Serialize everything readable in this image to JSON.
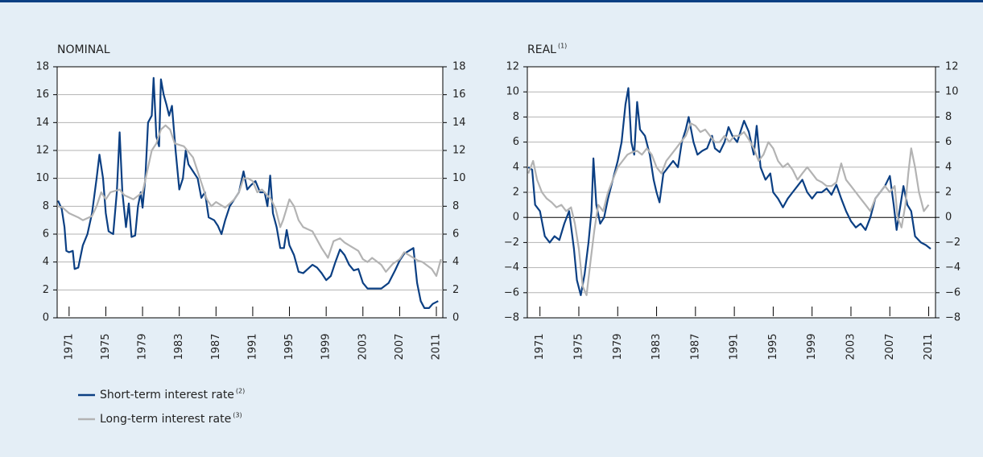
{
  "chart_data": [
    {
      "type": "line",
      "title": "NOMINAL",
      "xlim": [
        1969.7,
        2011.7
      ],
      "xticks": [
        1971,
        1975,
        1979,
        1983,
        1987,
        1991,
        1995,
        1999,
        2003,
        2007,
        2011
      ],
      "ylim": [
        0,
        18
      ],
      "yticks": [
        0,
        2,
        4,
        6,
        8,
        10,
        12,
        14,
        16,
        18
      ],
      "y2lim": [
        0,
        18
      ],
      "y2ticks": [
        0,
        2,
        4,
        6,
        8,
        10,
        12,
        14,
        16,
        18
      ],
      "grid": true,
      "series": [
        {
          "name": "Short-term interest rate",
          "note": "(2)",
          "color": "#0b3f83",
          "x": [
            1969.8,
            1970.2,
            1970.5,
            1970.7,
            1971.0,
            1971.4,
            1971.6,
            1972.0,
            1972.5,
            1973.0,
            1973.5,
            1974.0,
            1974.3,
            1974.7,
            1975.0,
            1975.3,
            1975.8,
            1976.2,
            1976.5,
            1976.8,
            1977.2,
            1977.5,
            1977.8,
            1978.2,
            1978.5,
            1978.8,
            1979.0,
            1979.3,
            1979.6,
            1980.0,
            1980.2,
            1980.5,
            1980.8,
            1981.0,
            1981.3,
            1981.6,
            1981.9,
            1982.2,
            1982.6,
            1983.0,
            1983.4,
            1983.7,
            1984.0,
            1984.5,
            1985.0,
            1985.4,
            1985.8,
            1986.2,
            1986.8,
            1987.2,
            1987.6,
            1988.0,
            1988.5,
            1989.0,
            1989.5,
            1990.0,
            1990.4,
            1990.8,
            1991.3,
            1991.8,
            1992.3,
            1992.6,
            1992.9,
            1993.2,
            1993.6,
            1994.0,
            1994.4,
            1994.7,
            1995.0,
            1995.5,
            1996.0,
            1996.5,
            1997.0,
            1997.5,
            1998.0,
            1998.5,
            1999.0,
            1999.5,
            2000.0,
            2000.5,
            2001.0,
            2001.5,
            2002.0,
            2002.5,
            2003.0,
            2003.5,
            2004.0,
            2005.0,
            2005.8,
            2006.5,
            2007.0,
            2007.5,
            2008.0,
            2008.5,
            2008.9,
            2009.3,
            2009.7,
            2010.2,
            2010.6,
            2011.2
          ],
          "values": [
            8.4,
            7.8,
            6.5,
            4.8,
            4.7,
            4.8,
            3.5,
            3.6,
            5.2,
            6.0,
            7.5,
            10.0,
            11.7,
            10.0,
            7.5,
            6.2,
            6.0,
            9.0,
            13.3,
            9.0,
            6.5,
            8.2,
            5.8,
            5.9,
            8.0,
            9.0,
            7.9,
            10.0,
            14.0,
            14.5,
            17.2,
            13.0,
            12.3,
            17.1,
            16.0,
            15.3,
            14.5,
            15.2,
            12.0,
            9.2,
            10.0,
            12.0,
            11.0,
            10.5,
            10.0,
            8.6,
            9.0,
            7.2,
            7.0,
            6.6,
            6.0,
            7.0,
            8.0,
            8.5,
            9.0,
            10.5,
            9.2,
            9.5,
            9.8,
            9.0,
            9.0,
            8.0,
            10.2,
            7.5,
            6.5,
            5.0,
            5.0,
            6.3,
            5.2,
            4.5,
            3.3,
            3.2,
            3.5,
            3.8,
            3.6,
            3.2,
            2.7,
            3.0,
            4.0,
            4.9,
            4.5,
            3.8,
            3.4,
            3.5,
            2.5,
            2.1,
            2.1,
            2.1,
            2.5,
            3.4,
            4.1,
            4.6,
            4.8,
            5.0,
            2.5,
            1.2,
            0.7,
            0.7,
            1.0,
            1.2
          ]
        },
        {
          "name": "Long-term interest rate",
          "note": "(3)",
          "color": "#b3b3b3",
          "x": [
            1969.8,
            1970.3,
            1971.0,
            1972.0,
            1972.5,
            1973.5,
            1974.0,
            1974.5,
            1975.0,
            1975.5,
            1976.5,
            1977.0,
            1978.0,
            1979.0,
            1979.5,
            1980.0,
            1980.5,
            1981.0,
            1981.5,
            1982.0,
            1982.5,
            1983.5,
            1984.5,
            1985.0,
            1985.5,
            1986.0,
            1986.5,
            1987.0,
            1988.0,
            1988.5,
            1989.0,
            1989.5,
            1990.0,
            1990.5,
            1991.0,
            1991.5,
            1992.0,
            1993.0,
            1993.5,
            1994.0,
            1994.3,
            1995.0,
            1995.5,
            1996.0,
            1996.5,
            1997.5,
            1998.5,
            1999.0,
            1999.2,
            1999.8,
            2000.5,
            2001.0,
            2001.5,
            2002.5,
            2003.0,
            2003.5,
            2004.0,
            2005.0,
            2005.5,
            2006.3,
            2007.0,
            2007.5,
            2008.0,
            2009.0,
            2009.5,
            2010.5,
            2011.0,
            2011.5
          ],
          "values": [
            8.0,
            7.9,
            7.5,
            7.2,
            7.0,
            7.3,
            8.0,
            9.0,
            8.5,
            9.0,
            9.2,
            8.8,
            8.5,
            9.0,
            10.5,
            12.0,
            12.5,
            13.5,
            13.8,
            13.5,
            12.5,
            12.3,
            11.5,
            10.5,
            9.5,
            8.5,
            8.0,
            8.3,
            7.9,
            8.2,
            8.5,
            9.0,
            10.0,
            10.0,
            9.8,
            9.0,
            9.2,
            8.5,
            7.8,
            6.5,
            7.0,
            8.5,
            8.0,
            7.0,
            6.5,
            6.2,
            5.0,
            4.5,
            4.3,
            5.5,
            5.7,
            5.4,
            5.2,
            4.8,
            4.2,
            4.0,
            4.3,
            3.8,
            3.3,
            3.9,
            4.2,
            4.7,
            4.5,
            4.1,
            4.0,
            3.5,
            3.0,
            4.2
          ]
        }
      ]
    },
    {
      "type": "line",
      "title": "REAL",
      "title_note": "(1)",
      "xlim": [
        1969.7,
        2011.7
      ],
      "xticks": [
        1971,
        1975,
        1979,
        1983,
        1987,
        1991,
        1995,
        1999,
        2003,
        2007,
        2011
      ],
      "ylim": [
        -8,
        12
      ],
      "yticks": [
        {
          "value": -8,
          "label": "−8"
        },
        {
          "value": -6,
          "label": "−6"
        },
        {
          "value": -4,
          "label": "−4"
        },
        {
          "value": -2,
          "label": "−2"
        },
        0,
        2,
        4,
        6,
        8,
        10,
        12
      ],
      "y2lim": [
        -8,
        12
      ],
      "y2ticks": [
        {
          "value": -8,
          "label": "−8"
        },
        {
          "value": -6,
          "label": "−6"
        },
        {
          "value": -4,
          "label": "−4"
        },
        {
          "value": -2,
          "label": "−2"
        },
        0,
        2,
        4,
        6,
        8,
        10,
        12
      ],
      "grid": true,
      "series": [
        {
          "name": "Short-term interest rate",
          "note": "(2)",
          "color": "#0b3f83",
          "x": [
            1969.8,
            1970.2,
            1970.5,
            1971.0,
            1971.5,
            1972.0,
            1972.5,
            1973.0,
            1973.5,
            1974.0,
            1974.5,
            1974.8,
            1975.2,
            1975.6,
            1976.0,
            1976.3,
            1976.5,
            1976.8,
            1977.2,
            1977.6,
            1978.0,
            1978.5,
            1979.0,
            1979.4,
            1979.8,
            1980.1,
            1980.4,
            1980.7,
            1981.0,
            1981.3,
            1981.8,
            1982.3,
            1982.7,
            1983.0,
            1983.3,
            1983.7,
            1984.2,
            1984.7,
            1985.2,
            1985.6,
            1986.0,
            1986.3,
            1986.8,
            1987.2,
            1987.7,
            1988.2,
            1988.7,
            1989.0,
            1989.5,
            1990.0,
            1990.4,
            1990.8,
            1991.3,
            1991.7,
            1992.0,
            1992.5,
            1993.0,
            1993.3,
            1993.7,
            1994.2,
            1994.7,
            1995.0,
            1995.5,
            1996.0,
            1996.5,
            1997.0,
            1997.5,
            1998.0,
            1998.5,
            1999.0,
            1999.5,
            2000.0,
            2000.5,
            2001.0,
            2001.5,
            2002.0,
            2002.5,
            2003.0,
            2003.5,
            2004.0,
            2004.5,
            2005.0,
            2005.5,
            2006.0,
            2006.5,
            2007.0,
            2007.4,
            2007.7,
            2008.0,
            2008.4,
            2008.8,
            2009.2,
            2009.6,
            2010.2,
            2010.7,
            2011.2
          ],
          "values": [
            4.0,
            3.8,
            1.0,
            0.5,
            -1.5,
            -2.0,
            -1.5,
            -1.8,
            -0.5,
            0.5,
            -2.5,
            -5.0,
            -6.2,
            -4.5,
            -2.0,
            0.5,
            4.7,
            1.0,
            -0.5,
            0.0,
            1.5,
            3.0,
            4.5,
            6.0,
            9.0,
            10.3,
            6.0,
            5.0,
            9.2,
            7.0,
            6.5,
            5.0,
            3.0,
            2.0,
            1.2,
            3.5,
            4.0,
            4.5,
            4.0,
            6.0,
            7.0,
            8.0,
            6.0,
            5.0,
            5.3,
            5.5,
            6.5,
            5.5,
            5.2,
            6.0,
            7.2,
            6.5,
            6.0,
            7.0,
            7.7,
            6.8,
            5.0,
            7.3,
            4.0,
            3.0,
            3.5,
            2.0,
            1.5,
            0.8,
            1.5,
            2.0,
            2.5,
            3.0,
            2.0,
            1.5,
            2.0,
            2.0,
            2.3,
            1.8,
            2.6,
            1.5,
            0.5,
            -0.3,
            -0.8,
            -0.5,
            -1.0,
            0.0,
            1.5,
            2.0,
            2.5,
            3.3,
            1.0,
            -1.0,
            0.5,
            2.5,
            1.0,
            0.5,
            -1.5,
            -2.0,
            -2.2,
            -2.5
          ]
        },
        {
          "name": "Long-term interest rate",
          "note": "(3)",
          "color": "#b3b3b3",
          "x": [
            1969.8,
            1970.3,
            1970.7,
            1971.2,
            1971.7,
            1972.2,
            1972.7,
            1973.2,
            1973.7,
            1974.2,
            1974.6,
            1975.0,
            1975.4,
            1975.8,
            1976.2,
            1976.6,
            1977.0,
            1977.5,
            1978.0,
            1978.5,
            1979.0,
            1979.5,
            1980.0,
            1980.5,
            1981.0,
            1981.5,
            1982.0,
            1982.5,
            1983.0,
            1983.5,
            1984.0,
            1984.5,
            1985.0,
            1985.5,
            1986.0,
            1986.5,
            1987.0,
            1987.5,
            1988.0,
            1988.5,
            1989.0,
            1989.5,
            1990.0,
            1990.5,
            1991.0,
            1991.5,
            1992.0,
            1992.5,
            1993.0,
            1993.5,
            1994.0,
            1994.5,
            1995.0,
            1995.5,
            1996.0,
            1996.5,
            1997.0,
            1997.5,
            1998.0,
            1998.5,
            1999.0,
            1999.5,
            2000.0,
            2000.5,
            2001.0,
            2001.5,
            2002.0,
            2002.5,
            2003.0,
            2003.5,
            2004.0,
            2004.5,
            2005.0,
            2005.5,
            2006.0,
            2006.5,
            2007.0,
            2007.5,
            2007.8,
            2008.2,
            2008.6,
            2008.9,
            2009.2,
            2009.6,
            2010.0,
            2010.5,
            2011.0
          ],
          "values": [
            3.5,
            4.5,
            3.0,
            2.0,
            1.5,
            1.2,
            0.8,
            1.0,
            0.5,
            0.8,
            -0.5,
            -2.5,
            -5.5,
            -6.2,
            -3.5,
            -1.0,
            1.0,
            0.5,
            2.0,
            3.0,
            4.0,
            4.5,
            5.0,
            5.2,
            5.3,
            5.0,
            5.5,
            5.0,
            4.0,
            3.5,
            4.5,
            5.0,
            5.5,
            6.0,
            6.5,
            7.5,
            7.3,
            6.8,
            7.0,
            6.5,
            6.0,
            6.0,
            6.5,
            6.0,
            6.5,
            6.5,
            6.8,
            6.2,
            5.5,
            4.5,
            5.0,
            6.0,
            5.5,
            4.5,
            4.0,
            4.3,
            3.8,
            3.0,
            3.5,
            4.0,
            3.5,
            3.0,
            2.8,
            2.5,
            2.5,
            2.8,
            4.3,
            3.0,
            2.5,
            2.0,
            1.5,
            1.0,
            0.5,
            1.5,
            2.0,
            2.5,
            2.0,
            2.5,
            0.0,
            -0.8,
            1.0,
            3.5,
            5.5,
            4.0,
            2.0,
            0.5,
            1.0
          ]
        }
      ]
    }
  ]
}
